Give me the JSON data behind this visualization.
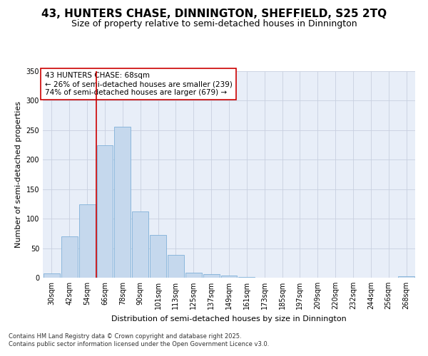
{
  "title": "43, HUNTERS CHASE, DINNINGTON, SHEFFIELD, S25 2TQ",
  "subtitle": "Size of property relative to semi-detached houses in Dinnington",
  "xlabel": "Distribution of semi-detached houses by size in Dinnington",
  "ylabel": "Number of semi-detached properties",
  "categories": [
    "30sqm",
    "42sqm",
    "54sqm",
    "66sqm",
    "78sqm",
    "90sqm",
    "101sqm",
    "113sqm",
    "125sqm",
    "137sqm",
    "149sqm",
    "161sqm",
    "173sqm",
    "185sqm",
    "197sqm",
    "209sqm",
    "220sqm",
    "232sqm",
    "244sqm",
    "256sqm",
    "268sqm"
  ],
  "values": [
    7,
    70,
    124,
    224,
    256,
    112,
    73,
    39,
    9,
    6,
    4,
    1,
    0,
    0,
    0,
    0,
    0,
    0,
    0,
    0,
    2
  ],
  "bar_color": "#c5d8ed",
  "bar_edge_color": "#7fb0d8",
  "vline_index": 3,
  "vline_color": "#cc0000",
  "annotation_text": "43 HUNTERS CHASE: 68sqm\n← 26% of semi-detached houses are smaller (239)\n74% of semi-detached houses are larger (679) →",
  "annotation_box_color": "#ffffff",
  "annotation_box_edge": "#cc0000",
  "ylim": [
    0,
    350
  ],
  "yticks": [
    0,
    50,
    100,
    150,
    200,
    250,
    300,
    350
  ],
  "footnote": "Contains HM Land Registry data © Crown copyright and database right 2025.\nContains public sector information licensed under the Open Government Licence v3.0.",
  "background_color": "#ffffff",
  "plot_bg_color": "#e8eef8",
  "grid_color": "#c8d0e0",
  "title_fontsize": 11,
  "subtitle_fontsize": 9,
  "axis_label_fontsize": 8,
  "tick_fontsize": 7,
  "annotation_fontsize": 7.5,
  "footnote_fontsize": 6
}
